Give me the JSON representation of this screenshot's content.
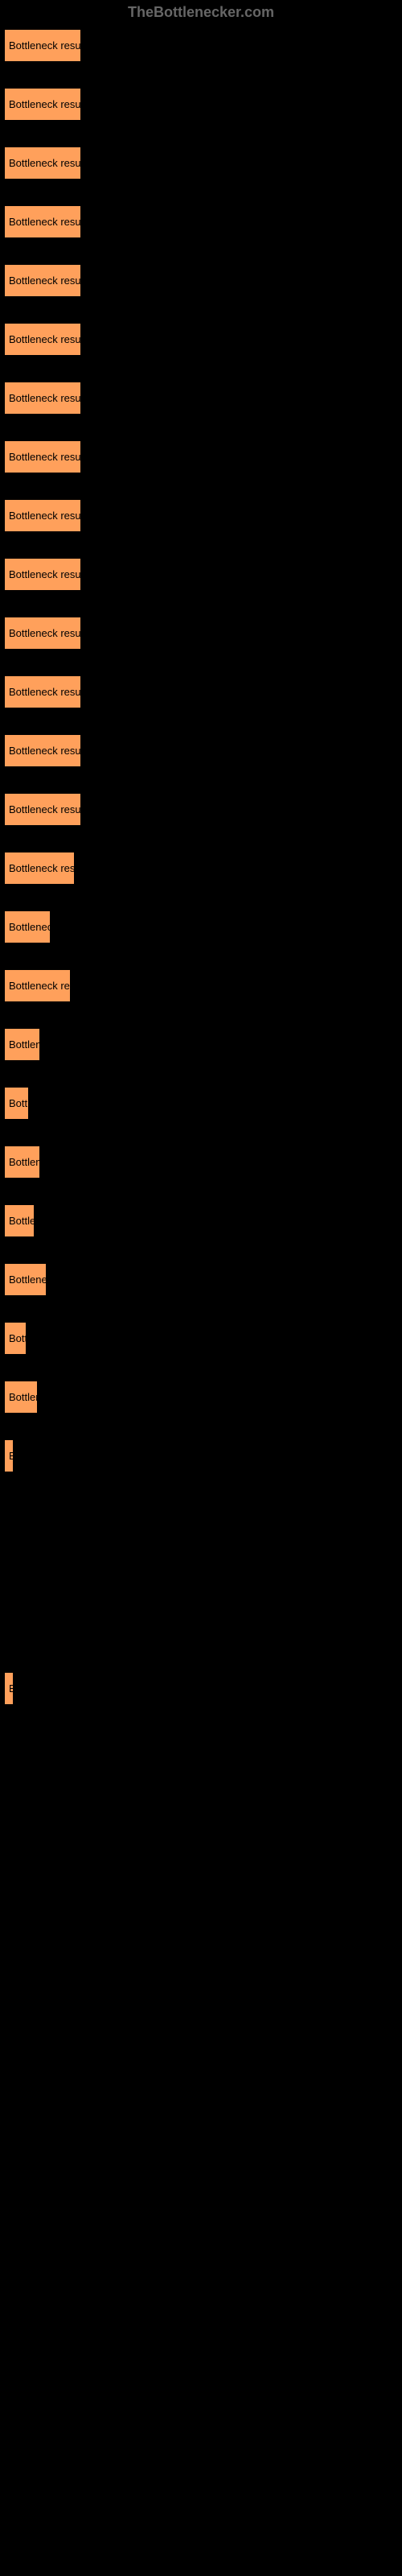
{
  "header": {
    "title": "TheBottlenecker.com"
  },
  "buttons": [
    {
      "label": "Bottleneck result",
      "width": 96
    },
    {
      "label": "Bottleneck result",
      "width": 96
    },
    {
      "label": "Bottleneck result",
      "width": 96
    },
    {
      "label": "Bottleneck result",
      "width": 96
    },
    {
      "label": "Bottleneck result",
      "width": 96
    },
    {
      "label": "Bottleneck result",
      "width": 96
    },
    {
      "label": "Bottleneck result",
      "width": 96
    },
    {
      "label": "Bottleneck result",
      "width": 96
    },
    {
      "label": "Bottleneck result",
      "width": 96
    },
    {
      "label": "Bottleneck result",
      "width": 96
    },
    {
      "label": "Bottleneck result",
      "width": 96
    },
    {
      "label": "Bottleneck result",
      "width": 96
    },
    {
      "label": "Bottleneck result",
      "width": 96
    },
    {
      "label": "Bottleneck result",
      "width": 96
    },
    {
      "label": "Bottleneck result",
      "width": 88
    },
    {
      "label": "Bottleneck",
      "width": 58
    },
    {
      "label": "Bottleneck result",
      "width": 83
    },
    {
      "label": "Bottleneck",
      "width": 45
    },
    {
      "label": "Bottleneck",
      "width": 31
    },
    {
      "label": "Bottleneck",
      "width": 45
    },
    {
      "label": "Bottleneck",
      "width": 38
    },
    {
      "label": "Bottleneck",
      "width": 53
    },
    {
      "label": "Bottleneck",
      "width": 28
    },
    {
      "label": "Bottleneck",
      "width": 42
    },
    {
      "label": "Bottleneck",
      "width": 4
    },
    {
      "label": "",
      "width": 0
    },
    {
      "label": "",
      "width": 0
    },
    {
      "label": "",
      "width": 0
    },
    {
      "label": "B",
      "width": 10
    }
  ]
}
